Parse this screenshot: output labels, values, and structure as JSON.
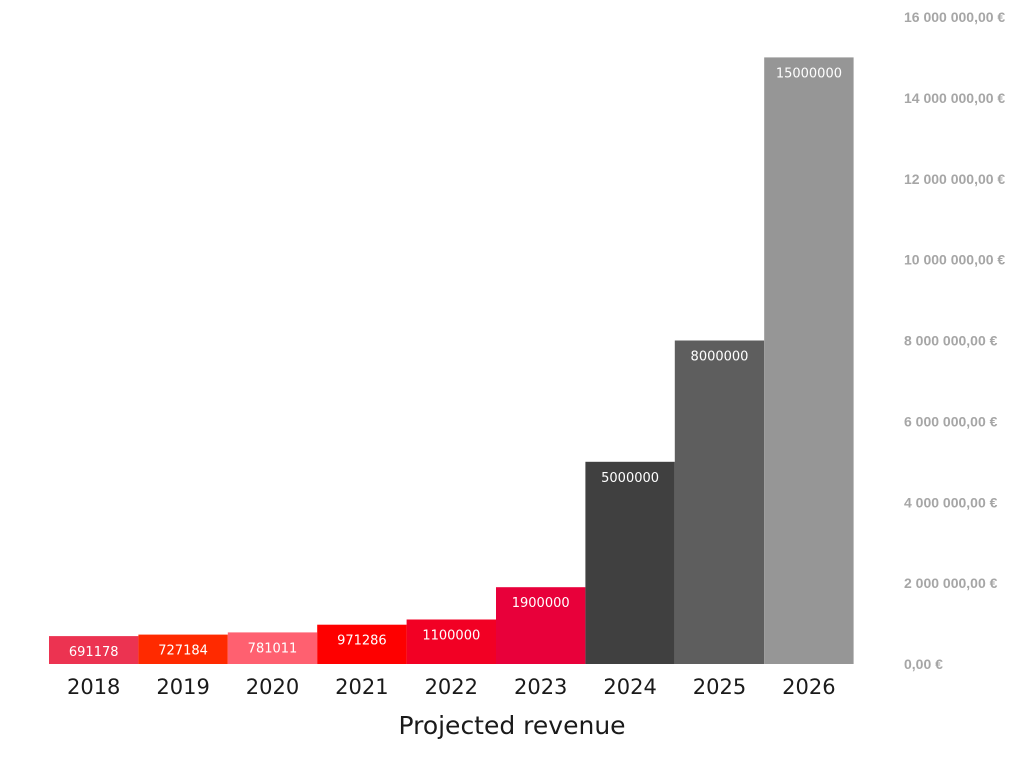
{
  "chart_data": {
    "type": "bar",
    "title": "",
    "xlabel": "Projected revenue",
    "ylabel": "",
    "categories": [
      "2018",
      "2019",
      "2020",
      "2021",
      "2022",
      "2023",
      "2024",
      "2025",
      "2026"
    ],
    "values": [
      691178,
      727184,
      781011,
      971286,
      1100000,
      1900000,
      5000000,
      8000000,
      15000000
    ],
    "data_labels": [
      "691178",
      "727184",
      "781011",
      "971286",
      "1100000",
      "1900000",
      "5000000",
      "8000000",
      "15000000"
    ],
    "colors": [
      "#ec3351",
      "#ff2a00",
      "#ff6070",
      "#fe0000",
      "#f20024",
      "#e8003a",
      "#404040",
      "#5e5e5e",
      "#969696"
    ],
    "ylim": [
      0,
      16000000
    ],
    "y_ticks": [
      0,
      2000000,
      4000000,
      6000000,
      8000000,
      10000000,
      12000000,
      14000000,
      16000000
    ],
    "y_tick_labels": [
      "0,00 €",
      "2 000 000,00 €",
      "4 000 000,00 €",
      "6 000 000,00 €",
      "8 000 000,00 €",
      "10 000 000,00 €",
      "12 000 000,00 €",
      "14 000 000,00 €",
      "16 000 000,00 €"
    ],
    "y_axis_position": "right",
    "grid": false,
    "legend": "none"
  }
}
